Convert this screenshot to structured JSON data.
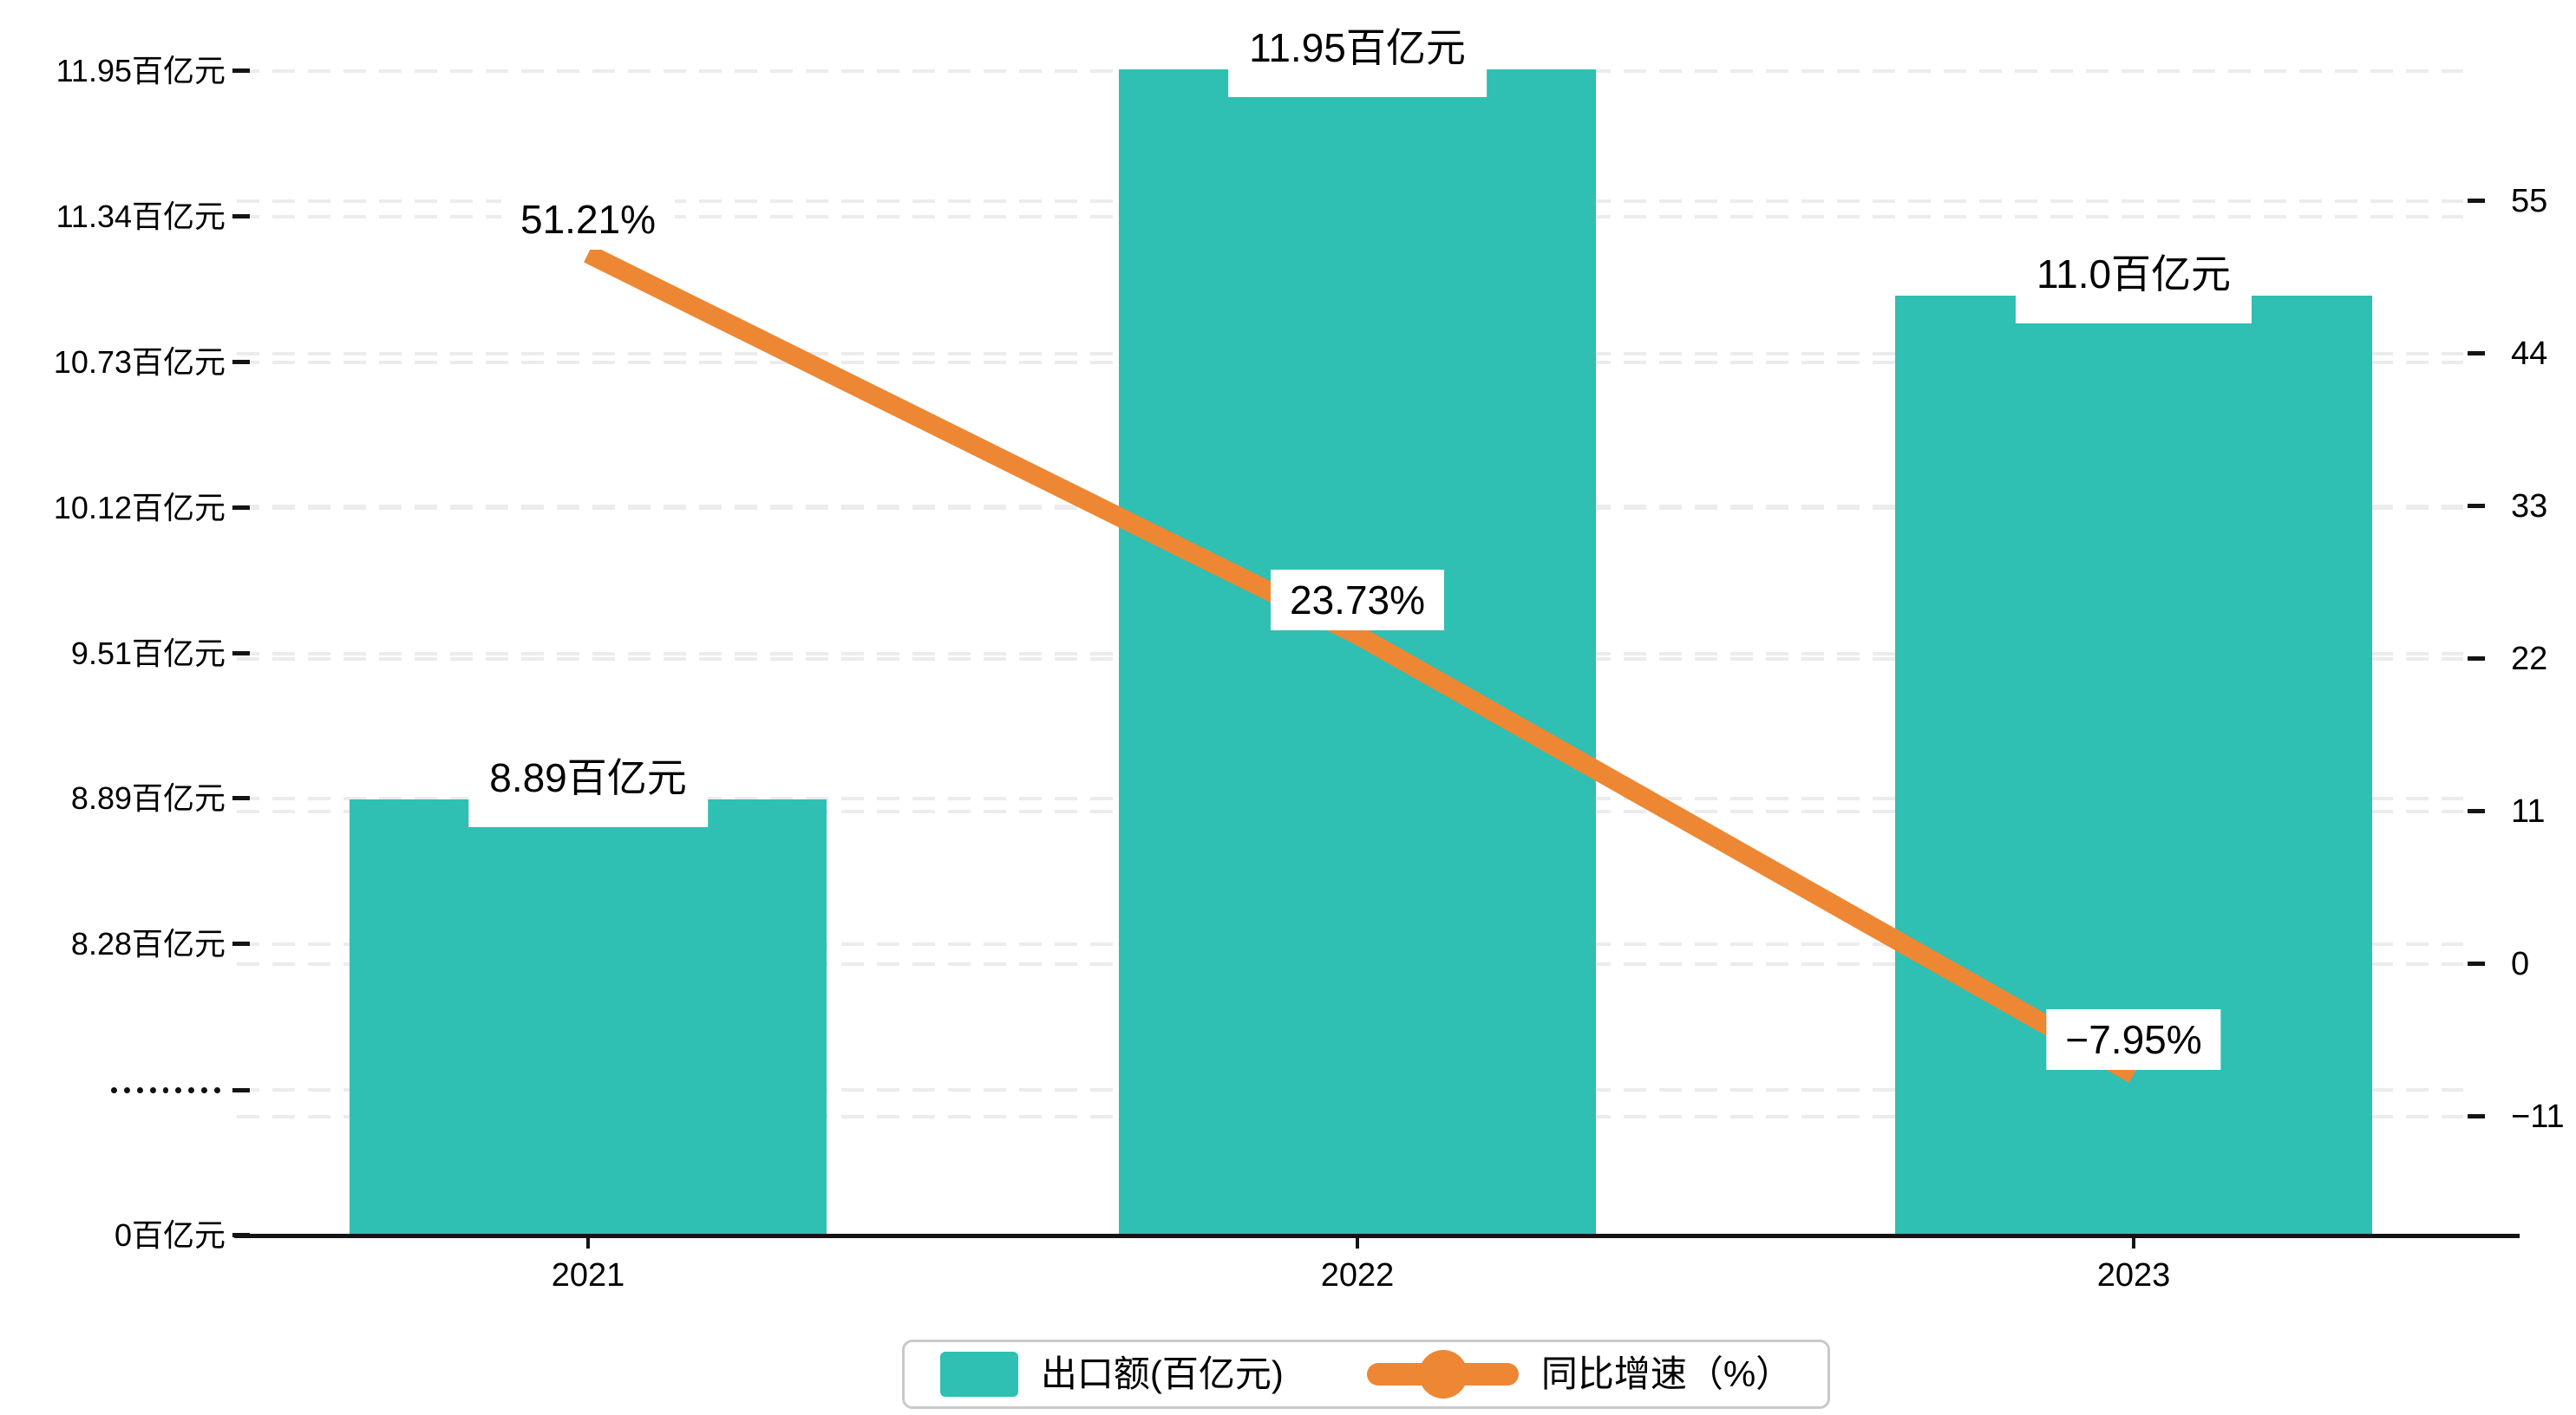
{
  "chart_data": {
    "type": "bar",
    "secondary_type": "line",
    "title": "",
    "categories": [
      "2021",
      "2022",
      "2023"
    ],
    "series": [
      {
        "name": "出口额(百亿元)",
        "type": "bar",
        "axis": "left",
        "values": [
          8.89,
          11.95,
          11.0
        ],
        "data_labels": [
          "8.89百亿元",
          "11.95百亿元",
          "11.0百亿元"
        ],
        "color": "#2FBFB3"
      },
      {
        "name": "同比增速（%）",
        "type": "line",
        "axis": "right",
        "values": [
          51.21,
          23.73,
          -7.95
        ],
        "data_labels": [
          "51.21%",
          "23.73%",
          "−7.95%"
        ],
        "color": "#ED8733"
      }
    ],
    "left_axis": {
      "unit": "百亿元",
      "tick_labels": [
        "11.95百亿元",
        "11.34百亿元",
        "10.73百亿元",
        "10.12百亿元",
        "9.51百亿元",
        "8.89百亿元",
        "8.28百亿元",
        "·········",
        "0百亿元"
      ],
      "tick_values": [
        11.95,
        11.34,
        10.73,
        10.12,
        9.51,
        8.89,
        8.28,
        null,
        0
      ],
      "axis_break": true
    },
    "right_axis": {
      "unit": "%",
      "tick_labels": [
        "55",
        "44",
        "33",
        "22",
        "11",
        "0",
        "−11"
      ],
      "tick_values": [
        55,
        44,
        33,
        22,
        11,
        0,
        -11
      ]
    },
    "legend": {
      "position": "bottom",
      "items": [
        {
          "label": "出口额(百亿元)",
          "marker": "square",
          "color": "#2FBFB3"
        },
        {
          "label": "同比增速（%）",
          "marker": "line-dot",
          "color": "#ED8733"
        }
      ]
    },
    "grid": true,
    "grid_color": "#ececec",
    "background": "#ffffff",
    "text_color": "#000000",
    "axis_color": "#141414"
  }
}
